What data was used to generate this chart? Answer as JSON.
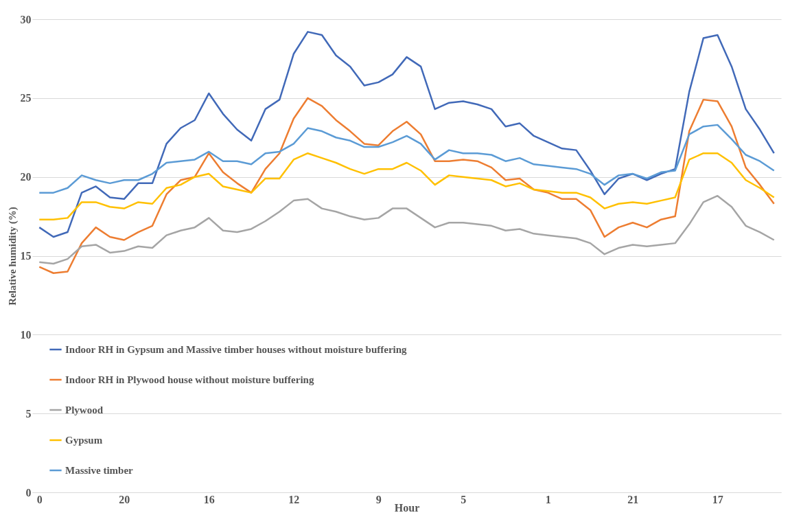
{
  "chart_data": {
    "type": "line",
    "xlabel": "Hour",
    "ylabel": "Relative humidity (%)",
    "categories": [
      "0",
      null,
      null,
      null,
      null,
      null,
      "20",
      null,
      null,
      null,
      null,
      null,
      "16",
      null,
      null,
      null,
      null,
      null,
      "12",
      null,
      null,
      null,
      null,
      null,
      "9",
      null,
      null,
      null,
      null,
      null,
      "5",
      null,
      null,
      null,
      null,
      null,
      "1",
      null,
      null,
      null,
      null,
      null,
      "21",
      null,
      null,
      null,
      null,
      null,
      "17",
      null,
      null,
      null,
      null
    ],
    "ylim": [
      0,
      30
    ],
    "yticks": [
      0,
      5,
      10,
      15,
      20,
      25,
      30
    ],
    "grid": "y",
    "legend": "bottom left",
    "marker": "none",
    "line_style": "solid",
    "series": [
      {
        "name": "Indoor RH in Gypsum and Massive timber houses without moisture buffering",
        "color": "#4169b8",
        "values": [
          16.8,
          16.2,
          16.5,
          19.0,
          19.4,
          18.7,
          18.6,
          19.6,
          19.6,
          22.1,
          23.1,
          23.6,
          25.3,
          24.0,
          23.0,
          22.3,
          24.3,
          24.9,
          27.8,
          29.2,
          29.0,
          27.7,
          27.0,
          25.8,
          26.0,
          26.5,
          27.6,
          27.0,
          24.3,
          24.7,
          24.8,
          24.6,
          24.3,
          23.2,
          23.4,
          22.6,
          22.2,
          21.8,
          21.7,
          20.4,
          18.9,
          19.9,
          20.2,
          19.8,
          20.2,
          20.5,
          25.4,
          28.8,
          29.0,
          27.0,
          24.3,
          23.0,
          21.5
        ]
      },
      {
        "name": "Indoor RH in Plywood house without moisture buffering",
        "color": "#ed7d31",
        "values": [
          14.3,
          13.9,
          14.0,
          15.8,
          16.8,
          16.2,
          16.0,
          16.5,
          16.9,
          18.9,
          19.8,
          20.0,
          21.5,
          20.3,
          19.6,
          19.0,
          20.5,
          21.5,
          23.7,
          25.0,
          24.5,
          23.6,
          22.9,
          22.1,
          22.0,
          22.9,
          23.5,
          22.7,
          21.0,
          21.0,
          21.1,
          21.0,
          20.6,
          19.8,
          19.9,
          19.2,
          19.0,
          18.6,
          18.6,
          17.9,
          16.2,
          16.8,
          17.1,
          16.8,
          17.3,
          17.5,
          22.9,
          24.9,
          24.8,
          23.2,
          20.6,
          19.5,
          18.3
        ]
      },
      {
        "name": "Plywood",
        "color": "#a5a5a5",
        "values": [
          14.6,
          14.5,
          14.8,
          15.6,
          15.7,
          15.2,
          15.3,
          15.6,
          15.5,
          16.3,
          16.6,
          16.8,
          17.4,
          16.6,
          16.5,
          16.7,
          17.2,
          17.8,
          18.5,
          18.6,
          18.0,
          17.8,
          17.5,
          17.3,
          17.4,
          18.0,
          18.0,
          17.4,
          16.8,
          17.1,
          17.1,
          17.0,
          16.9,
          16.6,
          16.7,
          16.4,
          16.3,
          16.2,
          16.1,
          15.8,
          15.1,
          15.5,
          15.7,
          15.6,
          15.7,
          15.8,
          17.0,
          18.4,
          18.8,
          18.1,
          16.9,
          16.5,
          16.0
        ]
      },
      {
        "name": "Gypsum",
        "color": "#ffc000",
        "values": [
          17.3,
          17.3,
          17.4,
          18.4,
          18.4,
          18.1,
          18.0,
          18.4,
          18.3,
          19.3,
          19.5,
          20.0,
          20.2,
          19.4,
          19.2,
          19.0,
          19.9,
          19.9,
          21.1,
          21.5,
          21.2,
          20.9,
          20.5,
          20.2,
          20.5,
          20.5,
          20.9,
          20.4,
          19.5,
          20.1,
          20.0,
          19.9,
          19.8,
          19.4,
          19.6,
          19.2,
          19.1,
          19.0,
          19.0,
          18.7,
          18.0,
          18.3,
          18.4,
          18.3,
          18.5,
          18.7,
          21.1,
          21.5,
          21.5,
          20.9,
          19.8,
          19.3,
          18.7
        ]
      },
      {
        "name": "Massive timber",
        "color": "#5b9bd5",
        "values": [
          19.0,
          19.0,
          19.3,
          20.1,
          19.8,
          19.6,
          19.8,
          19.8,
          20.2,
          20.9,
          21.0,
          21.1,
          21.6,
          21.0,
          21.0,
          20.8,
          21.5,
          21.6,
          22.1,
          23.1,
          22.9,
          22.5,
          22.3,
          21.9,
          21.9,
          22.2,
          22.6,
          22.1,
          21.1,
          21.7,
          21.5,
          21.5,
          21.4,
          21.0,
          21.2,
          20.8,
          20.7,
          20.6,
          20.5,
          20.2,
          19.5,
          20.1,
          20.2,
          19.9,
          20.3,
          20.4,
          22.7,
          23.2,
          23.3,
          22.4,
          21.4,
          21.0,
          20.4
        ]
      }
    ]
  }
}
